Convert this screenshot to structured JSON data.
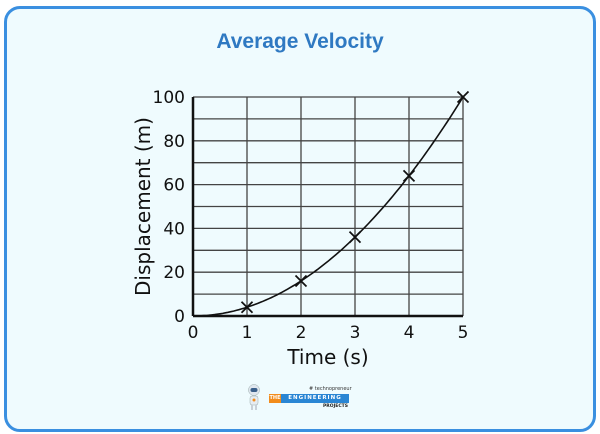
{
  "chart_data": {
    "type": "scatter",
    "title": "Average Velocity",
    "xlabel": "Time (s)",
    "ylabel": "Displacement (m)",
    "xlim": [
      0,
      5
    ],
    "ylim": [
      0,
      100
    ],
    "x_ticks": [
      "0",
      "1",
      "2",
      "3",
      "4",
      "5"
    ],
    "y_ticks": [
      "0",
      "20",
      "40",
      "60",
      "80",
      "100"
    ],
    "grid": true,
    "marker": "x",
    "fit_curve": "smooth curve through origin and points",
    "points": [
      {
        "x": 1,
        "y": 4
      },
      {
        "x": 2,
        "y": 16
      },
      {
        "x": 3,
        "y": 36
      },
      {
        "x": 4,
        "y": 64
      },
      {
        "x": 5,
        "y": 100
      }
    ],
    "colors": {
      "title": "#2f79c2",
      "border": "#3a8fe0",
      "background": "#effbfe",
      "ink": "#111111"
    }
  },
  "logo": {
    "tagline": "# technopreneur",
    "word1": "THE",
    "word2": "ENGINEERING",
    "word3": "PROJECTS"
  }
}
